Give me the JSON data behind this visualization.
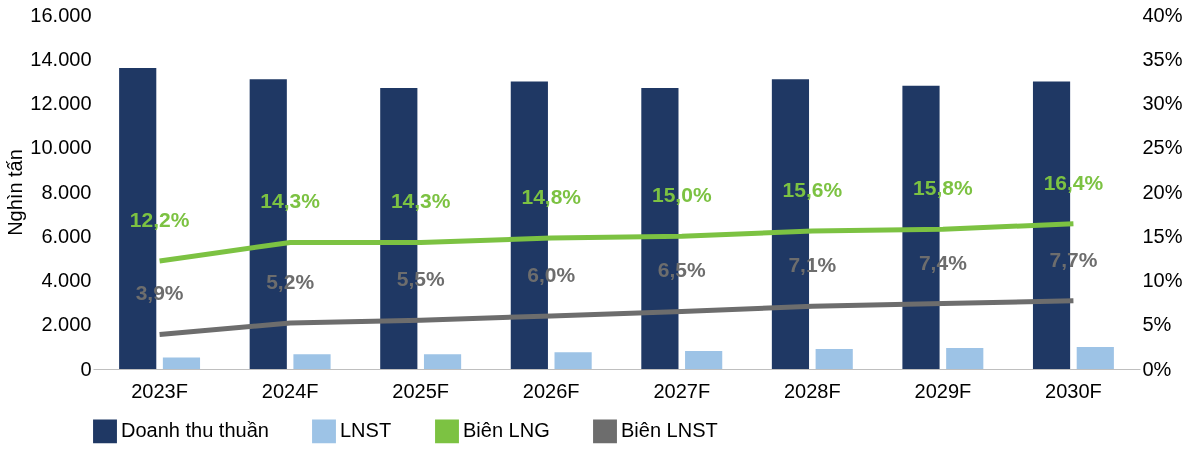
{
  "chart_data": {
    "type": "bar",
    "ylabel": "Nghìn tấn",
    "categories": [
      "2023F",
      "2024F",
      "2025F",
      "2026F",
      "2027F",
      "2028F",
      "2029F",
      "2030F"
    ],
    "series": [
      {
        "name": "Doanh thu thuần",
        "color": "#1f3864",
        "values": [
          13600,
          13100,
          12700,
          13000,
          12700,
          13100,
          12800,
          13000
        ]
      },
      {
        "name": "LNST",
        "color": "#9dc3e6",
        "values": [
          520,
          670,
          670,
          760,
          810,
          900,
          950,
          1000
        ]
      },
      {
        "name": "Biên LNG",
        "type": "line",
        "axis": "y2",
        "color": "#7cc242",
        "values": [
          12.2,
          14.3,
          14.3,
          14.8,
          15.0,
          15.6,
          15.8,
          16.4
        ],
        "value_labels": [
          "12,2%",
          "14,3%",
          "14,3%",
          "14,8%",
          "15,0%",
          "15,6%",
          "15,8%",
          "16,4%"
        ]
      },
      {
        "name": "Biên LNST",
        "type": "line",
        "axis": "y2",
        "color": "#6d6d6d",
        "values": [
          3.9,
          5.2,
          5.5,
          6.0,
          6.5,
          7.1,
          7.4,
          7.7
        ],
        "value_labels": [
          "3,9%",
          "5,2%",
          "5,5%",
          "6,0%",
          "6,5%",
          "7,1%",
          "7,4%",
          "7,7%"
        ]
      }
    ],
    "ylim": [
      0,
      16000
    ],
    "yticks": [
      0,
      {
        "value": 2000,
        "label": "2.000"
      },
      {
        "value": 4000,
        "label": "4.000"
      },
      {
        "value": 6000,
        "label": "6.000"
      },
      {
        "value": 8000,
        "label": "8.000"
      },
      {
        "value": 10000,
        "label": "10.000"
      },
      {
        "value": 12000,
        "label": "12.000"
      },
      {
        "value": 14000,
        "label": "14.000"
      },
      {
        "value": 16000,
        "label": "16.000"
      }
    ],
    "y2lim": [
      0,
      40
    ],
    "y2ticks": [
      {
        "value": 0,
        "label": "0%"
      },
      {
        "value": 5,
        "label": "5%"
      },
      {
        "value": 10,
        "label": "10%"
      },
      {
        "value": 15,
        "label": "15%"
      },
      {
        "value": 20,
        "label": "20%"
      },
      {
        "value": 25,
        "label": "25%"
      },
      {
        "value": 30,
        "label": "30%"
      },
      {
        "value": 35,
        "label": "35%"
      },
      {
        "value": 40,
        "label": "40%"
      }
    ],
    "legend": "bottom",
    "grid": false
  }
}
